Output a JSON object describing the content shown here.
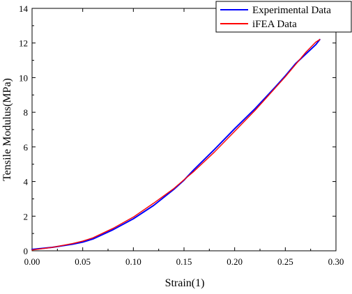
{
  "chart_data": {
    "type": "line",
    "title": "",
    "xlabel": "Strain(1)",
    "ylabel": "Tensile Modulus(MPa)",
    "xlim": [
      0,
      0.3
    ],
    "ylim": [
      0,
      14
    ],
    "x_ticks": [
      0.0,
      0.05,
      0.1,
      0.15,
      0.2,
      0.25,
      0.3
    ],
    "x_tick_labels": [
      "0.00",
      "0.05",
      "0.10",
      "0.15",
      "0.20",
      "0.25",
      "0.30"
    ],
    "y_ticks": [
      0,
      2,
      4,
      6,
      8,
      10,
      12,
      14
    ],
    "y_tick_labels": [
      "0",
      "2",
      "4",
      "6",
      "8",
      "10",
      "12",
      "14"
    ],
    "grid": false,
    "legend_position": "top-right",
    "series": [
      {
        "name": "Experimental Data",
        "color": "#0000ff",
        "x": [
          0.0,
          0.02,
          0.04,
          0.05,
          0.06,
          0.08,
          0.1,
          0.12,
          0.14,
          0.15,
          0.16,
          0.18,
          0.2,
          0.22,
          0.24,
          0.25,
          0.26,
          0.27,
          0.28,
          0.284
        ],
        "y": [
          0.08,
          0.2,
          0.38,
          0.5,
          0.68,
          1.22,
          1.85,
          2.62,
          3.55,
          4.08,
          4.7,
          5.85,
          7.05,
          8.2,
          9.45,
          10.1,
          10.8,
          11.35,
          11.9,
          12.2
        ]
      },
      {
        "name": "iFEA Data",
        "color": "#ff0000",
        "x": [
          0.0,
          0.02,
          0.04,
          0.05,
          0.06,
          0.08,
          0.1,
          0.12,
          0.14,
          0.15,
          0.16,
          0.18,
          0.2,
          0.22,
          0.24,
          0.25,
          0.26,
          0.27,
          0.28,
          0.284
        ],
        "y": [
          0.05,
          0.2,
          0.42,
          0.56,
          0.75,
          1.3,
          1.95,
          2.75,
          3.6,
          4.1,
          4.6,
          5.7,
          6.9,
          8.1,
          9.4,
          10.05,
          10.75,
          11.45,
          12.05,
          12.2
        ]
      }
    ]
  }
}
